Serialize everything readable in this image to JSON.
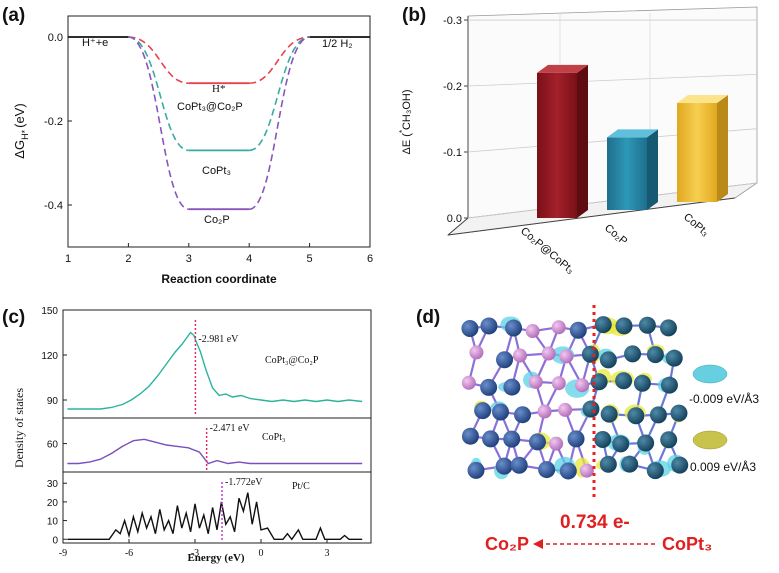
{
  "panel_labels": [
    "(a)",
    "(b)",
    "(c)",
    "(d)"
  ],
  "chart_data": [
    {
      "panel": "(a)",
      "type": "line",
      "xlabel": "Reaction coordinate",
      "ylabel": "ΔG",
      "ylabel_sub": "H*",
      "ylabel_unit": "(eV)",
      "xlim": [
        1,
        6
      ],
      "ylim": [
        -0.5,
        0.05
      ],
      "xticks": [
        "1",
        "2",
        "3",
        "4",
        "5",
        "6"
      ],
      "yticks": [
        "0.0",
        "-0.2",
        "-0.4"
      ],
      "yticks_values": [
        0,
        -0.2,
        -0.4
      ],
      "start_label": "H⁺+e",
      "end_label": "1/2 H₂",
      "intermediate_label": "H*",
      "series": [
        {
          "name": "CoPt₃@Co₂P",
          "color": "#e8424f",
          "value": -0.11
        },
        {
          "name": "CoPt₃",
          "color": "#3aaba2",
          "value": -0.27
        },
        {
          "name": "Co₂P",
          "color": "#8a55b8",
          "value": -0.41
        }
      ]
    },
    {
      "panel": "(b)",
      "type": "bar",
      "ylabel": "ΔE (  CH₃OH)",
      "ylabel_sup": "*",
      "categories": [
        "Co₂P@CoPt₃",
        "Co₂P",
        "CoPt₃"
      ],
      "values": [
        -0.22,
        -0.11,
        -0.15
      ],
      "colors": [
        "#9b1b24",
        "#2a8fb0",
        "#f2c340"
      ],
      "yticks": [
        "-0.3",
        "-0.2",
        "-0.1",
        "0.0"
      ],
      "yticks_values": [
        -0.3,
        -0.2,
        -0.1,
        0
      ],
      "ylim": [
        0,
        -0.3
      ]
    },
    {
      "panel": "(c)",
      "type": "line",
      "xlabel": "Energy (eV)",
      "ylabel": "Density of states",
      "xlim": [
        -9,
        5
      ],
      "xticks": [
        "-9",
        "-6",
        "-3",
        "0",
        "3"
      ],
      "xticks_values": [
        -9,
        -6,
        -3,
        0,
        3
      ],
      "subplots": [
        {
          "name": "CoPt₃@Co₂P",
          "color": "#2bb39e",
          "ylim": [
            78,
            150
          ],
          "yticks": [
            "150",
            "120",
            "90"
          ],
          "yticks_values": [
            150,
            120,
            90
          ],
          "dband": -2.981,
          "dband_label": "-2.981 eV",
          "points": [
            [
              -8.8,
              84
            ],
            [
              -8.3,
              84
            ],
            [
              -7.8,
              84
            ],
            [
              -7.3,
              84
            ],
            [
              -6.8,
              85
            ],
            [
              -6.3,
              87
            ],
            [
              -5.9,
              90
            ],
            [
              -5.5,
              94
            ],
            [
              -5.1,
              99
            ],
            [
              -4.7,
              106
            ],
            [
              -4.3,
              114
            ],
            [
              -3.9,
              122
            ],
            [
              -3.6,
              127
            ],
            [
              -3.4,
              131
            ],
            [
              -3.2,
              135
            ],
            [
              -3.05,
              133
            ],
            [
              -2.95,
              129
            ],
            [
              -2.75,
              122
            ],
            [
              -2.5,
              110
            ],
            [
              -2.2,
              98
            ],
            [
              -1.9,
              93
            ],
            [
              -1.6,
              94
            ],
            [
              -1.3,
              92
            ],
            [
              -0.9,
              93
            ],
            [
              -0.5,
              91
            ],
            [
              0,
              90
            ],
            [
              0.5,
              89
            ],
            [
              1,
              90
            ],
            [
              1.5,
              89
            ],
            [
              2,
              90
            ],
            [
              2.5,
              89
            ],
            [
              3,
              90
            ],
            [
              3.5,
              89
            ],
            [
              4,
              90
            ],
            [
              4.6,
              89
            ]
          ]
        },
        {
          "name": "CoPt₃",
          "color": "#7b4fbe",
          "ylim": [
            40,
            78
          ],
          "yticks": [
            "60"
          ],
          "yticks_values": [
            60
          ],
          "dband": -2.471,
          "dband_label": "-2.471 eV",
          "points": [
            [
              -8.8,
              46
            ],
            [
              -8.3,
              46
            ],
            [
              -7.8,
              47
            ],
            [
              -7.3,
              49
            ],
            [
              -6.8,
              53
            ],
            [
              -6.3,
              58
            ],
            [
              -5.8,
              62
            ],
            [
              -5.3,
              63
            ],
            [
              -4.8,
              61
            ],
            [
              -4.3,
              59
            ],
            [
              -3.8,
              58
            ],
            [
              -3.3,
              57
            ],
            [
              -2.8,
              54
            ],
            [
              -2.4,
              46
            ],
            [
              -2.0,
              48
            ],
            [
              -1.5,
              46
            ],
            [
              -1.0,
              47
            ],
            [
              -0.5,
              46
            ],
            [
              0,
              46
            ],
            [
              0.5,
              46
            ],
            [
              1,
              46
            ],
            [
              1.5,
              46
            ],
            [
              2,
              46
            ],
            [
              2.5,
              46
            ],
            [
              3,
              46
            ],
            [
              3.5,
              46
            ],
            [
              4,
              46
            ],
            [
              4.6,
              46
            ]
          ]
        },
        {
          "name": "Pt/C",
          "color": "#111111",
          "ylim": [
            -2,
            36
          ],
          "yticks": [
            "30",
            "20",
            "10",
            "0"
          ],
          "yticks_values": [
            30,
            20,
            10,
            0
          ],
          "dband": -1.772,
          "dband_label": "-1.772eV",
          "points": [
            [
              -8.8,
              0
            ],
            [
              -7.5,
              0
            ],
            [
              -6.9,
              0
            ],
            [
              -6.6,
              5
            ],
            [
              -6.4,
              3
            ],
            [
              -6.2,
              10
            ],
            [
              -6.0,
              2
            ],
            [
              -5.8,
              12
            ],
            [
              -5.6,
              4
            ],
            [
              -5.4,
              14
            ],
            [
              -5.2,
              6
            ],
            [
              -5.0,
              12
            ],
            [
              -4.8,
              3
            ],
            [
              -4.6,
              16
            ],
            [
              -4.4,
              5
            ],
            [
              -4.2,
              10
            ],
            [
              -4.0,
              3
            ],
            [
              -3.8,
              18
            ],
            [
              -3.6,
              6
            ],
            [
              -3.4,
              14
            ],
            [
              -3.2,
              4
            ],
            [
              -3.0,
              19
            ],
            [
              -2.8,
              6
            ],
            [
              -2.6,
              13
            ],
            [
              -2.4,
              3
            ],
            [
              -2.2,
              17
            ],
            [
              -2.0,
              5
            ],
            [
              -1.8,
              20
            ],
            [
              -1.6,
              8
            ],
            [
              -1.4,
              12
            ],
            [
              -1.2,
              4
            ],
            [
              -1.0,
              22
            ],
            [
              -0.8,
              15
            ],
            [
              -0.6,
              25
            ],
            [
              -0.4,
              8
            ],
            [
              -0.2,
              20
            ],
            [
              0.0,
              5
            ],
            [
              0.3,
              6
            ],
            [
              0.6,
              0
            ],
            [
              1.0,
              0
            ],
            [
              1.2,
              3
            ],
            [
              1.4,
              0
            ],
            [
              1.7,
              5
            ],
            [
              1.9,
              0
            ],
            [
              2.5,
              0
            ],
            [
              2.7,
              6
            ],
            [
              2.9,
              0
            ],
            [
              3.6,
              0
            ],
            [
              3.8,
              2
            ],
            [
              4.0,
              0
            ],
            [
              4.6,
              0
            ]
          ]
        }
      ]
    }
  ],
  "panel_d": {
    "legend": [
      {
        "label": "-0.009 eV/Å3",
        "color": "#66cfe0"
      },
      {
        "label": "0.009 eV/Å3",
        "color": "#c8c34a"
      }
    ],
    "left_label": "Co₂P",
    "right_label": "CoPt₃",
    "transfer_label": "0.734 e-"
  }
}
